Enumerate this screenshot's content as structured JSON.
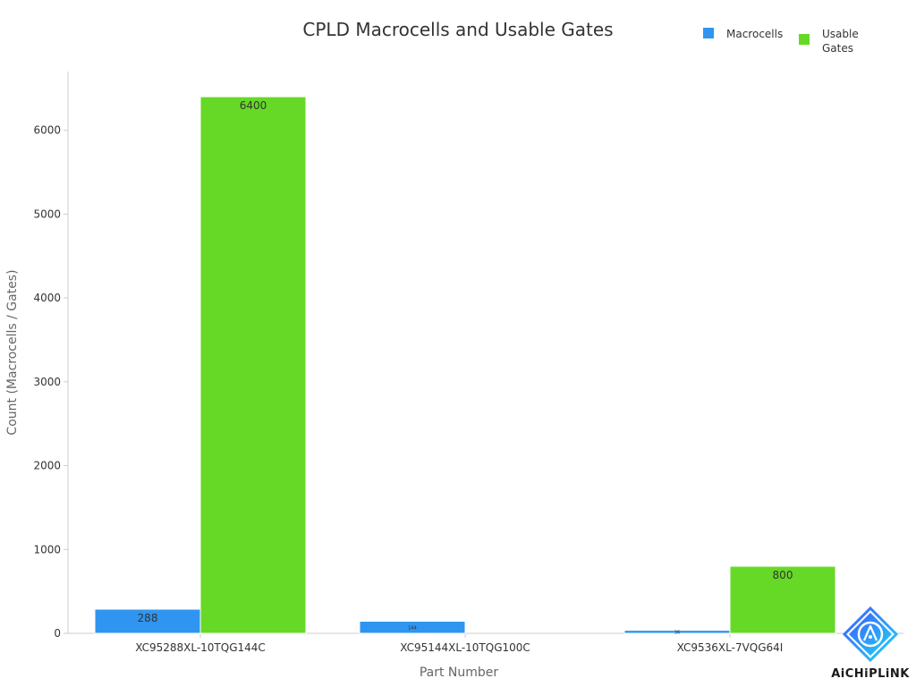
{
  "chart_data": {
    "type": "bar",
    "title": "CPLD Macrocells and Usable Gates",
    "xlabel": "Part Number",
    "ylabel": "Count (Macrocells / Gates)",
    "categories": [
      "XC95288XL-10TQG144C",
      "XC95144XL-10TQG100C",
      "XC9536XL-7VQG64I"
    ],
    "series": [
      {
        "name": "Macrocells",
        "color": "#2f95f0",
        "values": [
          288,
          144,
          36
        ],
        "labels": [
          "288",
          "144",
          "36"
        ]
      },
      {
        "name": "Usable\nGates",
        "color": "#66d927",
        "values": [
          6400,
          null,
          800
        ],
        "labels": [
          "6400",
          "",
          "800"
        ]
      }
    ],
    "ylim": [
      0,
      6700
    ],
    "yticks": [
      0,
      1000,
      2000,
      3000,
      4000,
      5000,
      6000
    ],
    "grid": false,
    "legend_position": "top-right"
  },
  "logo": {
    "name": "aichiplink-logo-icon",
    "text": "AiCHiPLiNK"
  }
}
